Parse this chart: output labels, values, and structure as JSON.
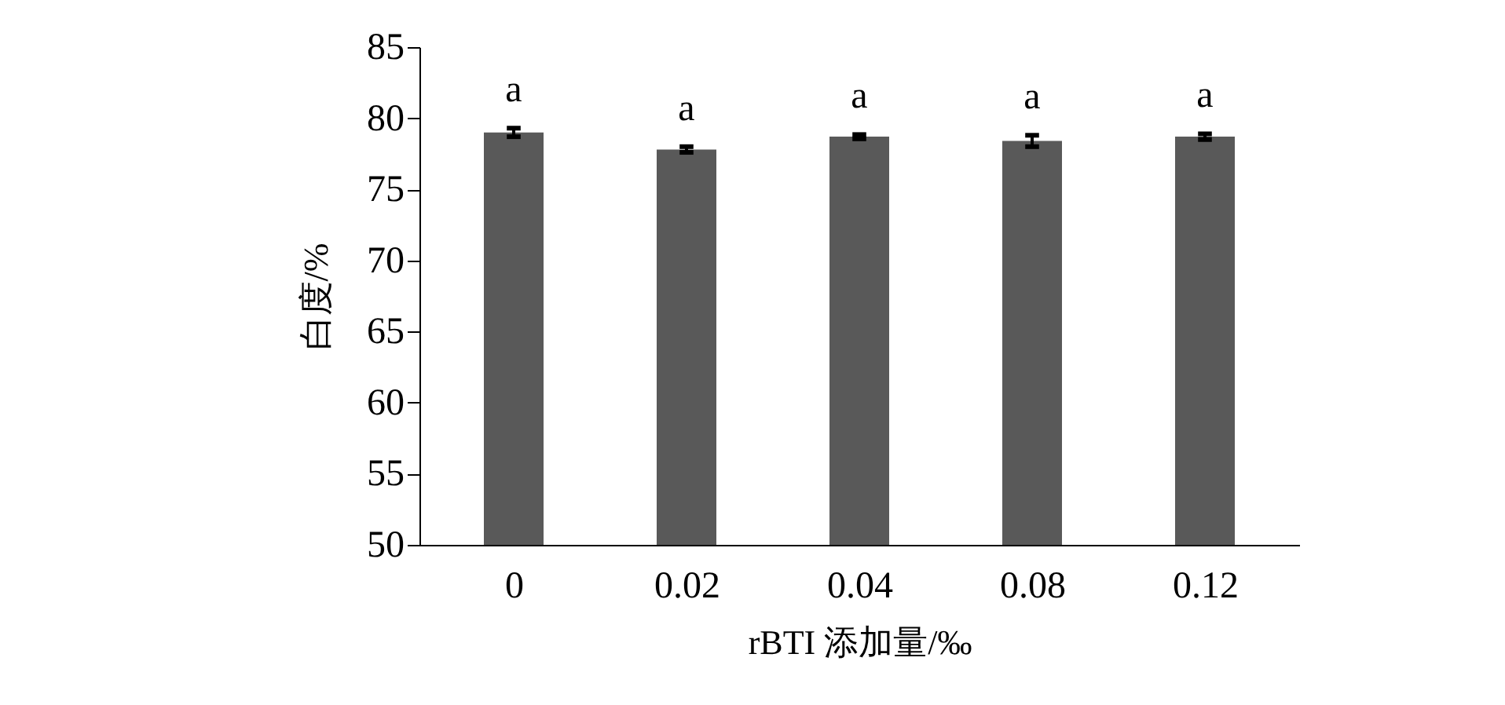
{
  "chart_data": {
    "type": "bar",
    "xlabel": "rBTI 添加量/‰",
    "ylabel": "白度/%",
    "categories": [
      "0",
      "0.02",
      "0.04",
      "0.08",
      "0.12"
    ],
    "series": [
      {
        "color": "#595959",
        "values": [
          79.0,
          77.8,
          78.7,
          78.4,
          78.7
        ],
        "errors": [
          0.3,
          0.2,
          0.15,
          0.4,
          0.2
        ],
        "value_labels": [
          "a",
          "a",
          "a",
          "a",
          "a"
        ]
      }
    ],
    "ylim": [
      50,
      85
    ],
    "yticks": [
      50,
      55,
      60,
      65,
      70,
      75,
      80,
      85
    ],
    "grid": false
  }
}
